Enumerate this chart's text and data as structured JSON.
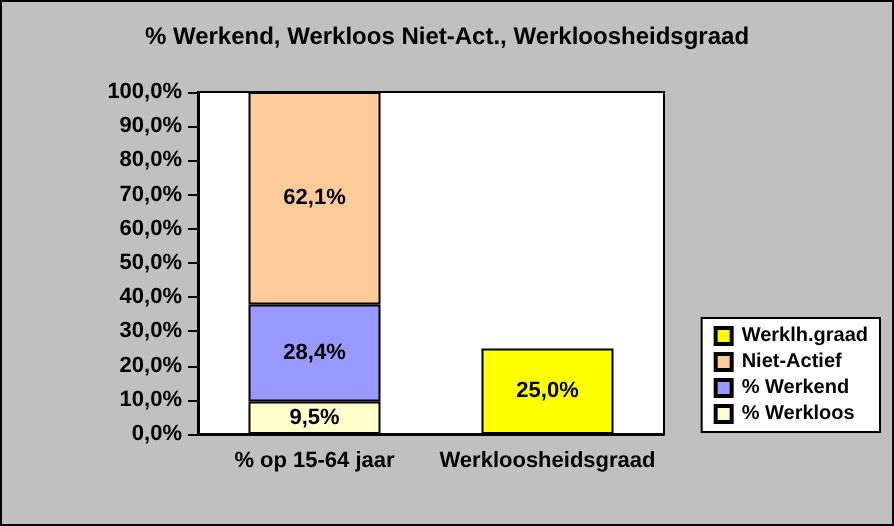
{
  "chart_data": {
    "type": "bar",
    "title": "% Werkend, Werkloos Niet-Act., Werkloosheidsgraad",
    "categories": [
      "% op 15-64 jaar",
      "Werkloosheidsgraad"
    ],
    "stacked": true,
    "series": [
      {
        "name": "% Werkloos",
        "color": "#ffffcc",
        "values": [
          9.5,
          null
        ],
        "value_labels": [
          "9,5%",
          null
        ]
      },
      {
        "name": "% Werkend",
        "color": "#9999ff",
        "values": [
          28.4,
          null
        ],
        "value_labels": [
          "28,4%",
          null
        ]
      },
      {
        "name": "Niet-Actief",
        "color": "#ffcc99",
        "values": [
          62.1,
          null
        ],
        "value_labels": [
          "62,1%",
          null
        ]
      },
      {
        "name": "Werklh.graad",
        "color": "#ffff00",
        "values": [
          null,
          25.0
        ],
        "value_labels": [
          null,
          "25,0%"
        ]
      }
    ],
    "ylim": [
      0,
      100
    ],
    "yticks": [
      {
        "value": 0,
        "label": "0,0%"
      },
      {
        "value": 10,
        "label": "10,0%"
      },
      {
        "value": 20,
        "label": "20,0%"
      },
      {
        "value": 30,
        "label": "30,0%"
      },
      {
        "value": 40,
        "label": "40,0%"
      },
      {
        "value": 50,
        "label": "50,0%"
      },
      {
        "value": 60,
        "label": "60,0%"
      },
      {
        "value": 70,
        "label": "70,0%"
      },
      {
        "value": 80,
        "label": "80,0%"
      },
      {
        "value": 90,
        "label": "90,0%"
      },
      {
        "value": 100,
        "label": "100,0%"
      }
    ],
    "grid": false,
    "legend": "right"
  }
}
